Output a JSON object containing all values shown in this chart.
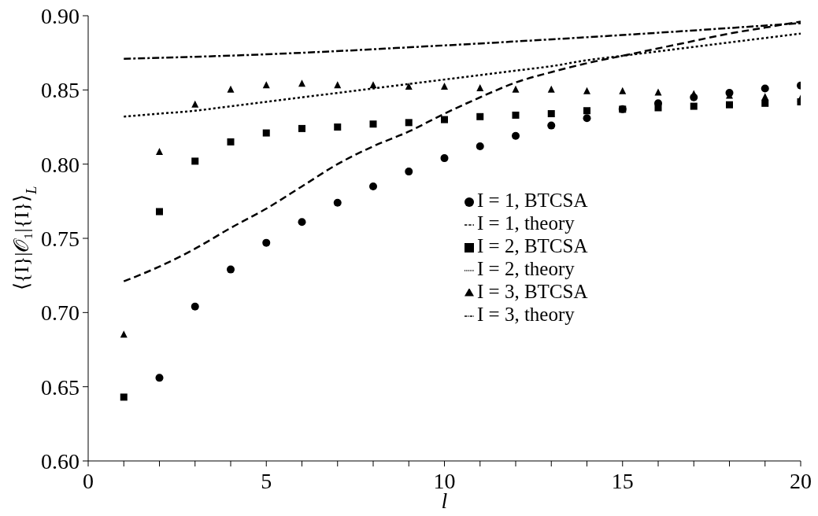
{
  "chart_data": {
    "type": "scatter",
    "xlabel": "l",
    "ylabel": "⟨{I}|𝒪₁|{I}⟩$_{L}$",
    "xlim": [
      0,
      20
    ],
    "xticks": [
      0,
      {
        "value": 1,
        "label": null
      },
      {
        "value": 2,
        "label": null
      },
      {
        "value": 3,
        "label": null
      },
      {
        "value": 4,
        "label": null
      },
      5,
      {
        "value": 6,
        "label": null
      },
      {
        "value": 7,
        "label": null
      },
      {
        "value": 8,
        "label": null
      },
      {
        "value": 9,
        "label": null
      },
      10,
      {
        "value": 11,
        "label": null
      },
      {
        "value": 12,
        "label": null
      },
      {
        "value": 13,
        "label": null
      },
      {
        "value": 14,
        "label": null
      },
      15,
      {
        "value": 16,
        "label": null
      },
      {
        "value": 17,
        "label": null
      },
      {
        "value": 18,
        "label": null
      },
      {
        "value": 19,
        "label": null
      },
      20
    ],
    "ylim": [
      0.6,
      0.9
    ],
    "yticks": [
      {
        "value": 0.6,
        "label": "0.60"
      },
      {
        "value": 0.65,
        "label": "0.65"
      },
      {
        "value": 0.7,
        "label": "0.70"
      },
      {
        "value": 0.75,
        "label": "0.75"
      },
      {
        "value": 0.8,
        "label": "0.80"
      },
      {
        "value": 0.85,
        "label": "0.85"
      },
      {
        "value": 0.9,
        "label": "0.90"
      }
    ],
    "legend": "right",
    "series": [
      {
        "name": "I = 1, BTCSA",
        "marker": "circle",
        "color": "#000000",
        "x": [
          2,
          3,
          4,
          5,
          6,
          7,
          8,
          9,
          10,
          11,
          12,
          13,
          14,
          15,
          16,
          17,
          18,
          19,
          20
        ],
        "values": [
          0.656,
          0.704,
          0.729,
          0.747,
          0.761,
          0.774,
          0.785,
          0.795,
          0.804,
          0.812,
          0.819,
          0.826,
          0.831,
          0.837,
          0.841,
          0.845,
          0.848,
          0.851,
          0.853
        ]
      },
      {
        "name": "I = 1, theory",
        "type": "line",
        "line_style": "dashed",
        "color": "#000000",
        "x": [
          1,
          2,
          3,
          4,
          5,
          6,
          7,
          8,
          9,
          10,
          11,
          12,
          13,
          14,
          15,
          16,
          17,
          18,
          19,
          20
        ],
        "values": [
          0.721,
          0.731,
          0.743,
          0.757,
          0.77,
          0.785,
          0.8,
          0.812,
          0.822,
          0.834,
          0.845,
          0.855,
          0.862,
          0.868,
          0.873,
          0.878,
          0.883,
          0.888,
          0.892,
          0.896
        ]
      },
      {
        "name": "I = 2, BTCSA",
        "marker": "square",
        "color": "#000000",
        "x": [
          1,
          2,
          3,
          4,
          5,
          6,
          7,
          8,
          9,
          10,
          11,
          12,
          13,
          14,
          15,
          16,
          17,
          18,
          19,
          20
        ],
        "values": [
          0.643,
          0.768,
          0.802,
          0.815,
          0.821,
          0.824,
          0.825,
          0.827,
          0.828,
          0.83,
          0.832,
          0.833,
          0.834,
          0.836,
          0.837,
          0.838,
          0.839,
          0.84,
          0.841,
          0.842
        ]
      },
      {
        "name": "I = 2, theory",
        "type": "line",
        "line_style": "dotted",
        "color": "#000000",
        "x": [
          1,
          2,
          3,
          4,
          5,
          6,
          7,
          8,
          9,
          10,
          11,
          12,
          13,
          14,
          15,
          16,
          17,
          18,
          19,
          20
        ],
        "values": [
          0.832,
          0.834,
          0.836,
          0.839,
          0.842,
          0.845,
          0.848,
          0.851,
          0.854,
          0.857,
          0.86,
          0.863,
          0.866,
          0.87,
          0.873,
          0.876,
          0.879,
          0.882,
          0.885,
          0.888
        ]
      },
      {
        "name": "I = 3, BTCSA",
        "marker": "triangle",
        "color": "#000000",
        "x": [
          1,
          2,
          3,
          4,
          5,
          6,
          7,
          8,
          9,
          10,
          11,
          12,
          13,
          14,
          15,
          16,
          17,
          18,
          19,
          20
        ],
        "values": [
          0.685,
          0.808,
          0.84,
          0.85,
          0.853,
          0.854,
          0.853,
          0.853,
          0.852,
          0.852,
          0.851,
          0.85,
          0.85,
          0.849,
          0.849,
          0.848,
          0.847,
          0.846,
          0.845,
          0.844
        ]
      },
      {
        "name": "I = 3, theory",
        "type": "line",
        "line_style": "dashdot",
        "color": "#000000",
        "x": [
          1,
          5,
          10,
          15,
          20
        ],
        "values": [
          0.871,
          0.874,
          0.88,
          0.887,
          0.895
        ]
      }
    ]
  }
}
